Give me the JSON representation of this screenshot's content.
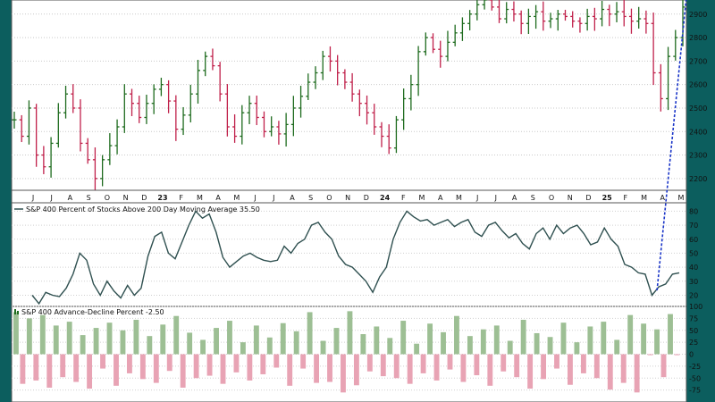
{
  "chart_data": [
    {
      "type": "bar",
      "subtype": "ohlc",
      "x_labels": [
        "J",
        "J",
        "A",
        "S",
        "O",
        "N",
        "D",
        "23",
        "F",
        "M",
        "A",
        "M",
        "J",
        "J",
        "A",
        "S",
        "O",
        "N",
        "D",
        "24",
        "F",
        "M",
        "A",
        "M",
        "J",
        "J",
        "A",
        "S",
        "O",
        "N",
        "D",
        "25",
        "F",
        "M",
        "A",
        "M"
      ],
      "y_ticks": [
        2200,
        2300,
        2400,
        2500,
        2600,
        2700,
        2800,
        2900
      ],
      "ylim": [
        2150,
        2960
      ],
      "y_scale": "linear",
      "grid": true,
      "closes": [
        2450,
        2380,
        2500,
        2300,
        2250,
        2350,
        2480,
        2560,
        2500,
        2350,
        2280,
        2200,
        2280,
        2340,
        2420,
        2560,
        2520,
        2460,
        2520,
        2580,
        2600,
        2530,
        2410,
        2470,
        2560,
        2660,
        2720,
        2680,
        2560,
        2420,
        2380,
        2480,
        2520,
        2460,
        2400,
        2420,
        2390,
        2430,
        2500,
        2550,
        2610,
        2650,
        2720,
        2700,
        2650,
        2610,
        2560,
        2520,
        2480,
        2420,
        2380,
        2330,
        2450,
        2540,
        2600,
        2740,
        2800,
        2750,
        2720,
        2780,
        2820,
        2860,
        2900,
        2940,
        2960,
        2930,
        2880,
        2920,
        2900,
        2860,
        2890,
        2910,
        2870,
        2880,
        2900,
        2890,
        2870,
        2860,
        2890,
        2880,
        2920,
        2900,
        2910,
        2890,
        2870,
        2880,
        2860,
        2650,
        2540,
        2720,
        2800,
        2930
      ],
      "bar_colors": {
        "up": "#1e6b1e",
        "down": "#c0204a"
      }
    },
    {
      "type": "line",
      "title": "S&P 400 Percent of Stocks Above 200 Day Moving Average 35.50",
      "values": [
        20,
        14,
        22,
        20,
        19,
        25,
        35,
        50,
        45,
        28,
        20,
        30,
        23,
        18,
        27,
        20,
        25,
        48,
        62,
        65,
        50,
        46,
        58,
        70,
        80,
        75,
        78,
        65,
        47,
        40,
        44,
        48,
        50,
        47,
        45,
        44,
        45,
        55,
        50,
        57,
        60,
        70,
        72,
        65,
        60,
        48,
        42,
        40,
        35,
        30,
        22,
        33,
        40,
        60,
        72,
        80,
        76,
        73,
        74,
        70,
        72,
        74,
        69,
        72,
        74,
        65,
        62,
        70,
        72,
        66,
        61,
        64,
        57,
        53,
        64,
        68,
        60,
        70,
        64,
        68,
        70,
        64,
        56,
        58,
        68,
        60,
        55,
        42,
        40,
        36,
        35,
        20,
        26,
        28,
        35,
        36
      ],
      "y_ticks": [
        20,
        30,
        40,
        50,
        60,
        70,
        80
      ],
      "ylim": [
        12,
        86
      ],
      "trendline": {
        "from_index": 92,
        "to_index": 96,
        "color": "#1a35c8",
        "style": "dashed"
      }
    },
    {
      "type": "bar",
      "title": "S&P 400 Advance-Decline Percent -2.50",
      "values": [
        88,
        -62,
        75,
        -55,
        82,
        -70,
        60,
        -48,
        68,
        -58,
        40,
        -72,
        55,
        -30,
        66,
        -66,
        50,
        -40,
        72,
        -52,
        38,
        -60,
        62,
        -35,
        80,
        -70,
        45,
        -50,
        30,
        -45,
        55,
        -62,
        70,
        -38,
        25,
        -55,
        60,
        -42,
        35,
        -28,
        65,
        -66,
        48,
        -30,
        88,
        -60,
        28,
        -58,
        55,
        -80,
        90,
        -65,
        42,
        -36,
        58,
        -46,
        34,
        -50,
        70,
        -62,
        22,
        -40,
        64,
        -55,
        46,
        -32,
        80,
        -58,
        38,
        -44,
        52,
        -66,
        60,
        -36,
        28,
        -48,
        72,
        -72,
        44,
        -52,
        36,
        -30,
        66,
        -64,
        25,
        -40,
        58,
        -50,
        68,
        -74,
        30,
        -60,
        82,
        -80,
        64,
        -2,
        52,
        -48,
        84,
        -2
      ],
      "y_ticks": [
        100,
        75,
        50,
        25,
        0,
        -25,
        -50,
        -75
      ],
      "ylim": [
        -100,
        100
      ],
      "colors": {
        "positive": "#9dbf94",
        "negative": "#e8a3b4"
      }
    }
  ]
}
